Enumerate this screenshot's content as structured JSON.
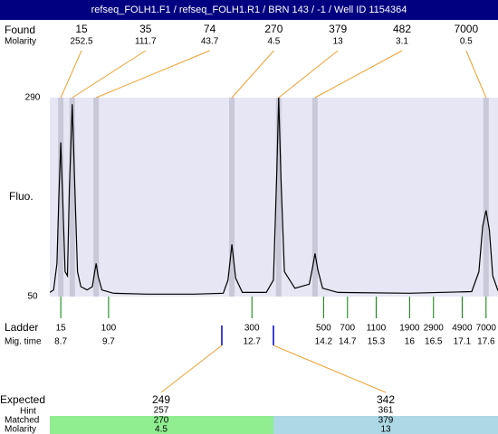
{
  "title": "refseq_FOLH1.F1 / refseq_FOLH1.R1 / BRN 143 / -1 / Well ID 1154364",
  "labels": {
    "found": "Found",
    "found_molarity": "Molarity",
    "fluo": "Fluo.",
    "ladder": "Ladder",
    "mig_time": "Mig. time",
    "expected": "Expected",
    "hint": "Hint",
    "matched": "Matched",
    "matched_molarity": "Molarity"
  },
  "chart_data": {
    "type": "line",
    "color": "#000000",
    "x": [
      8.47,
      8.55,
      8.62,
      8.66,
      8.7,
      8.74,
      8.79,
      8.84,
      8.88,
      8.94,
      8.99,
      9.05,
      9.12,
      9.25,
      9.36,
      9.41,
      9.44,
      9.48,
      9.56,
      9.8,
      10.5,
      11.5,
      12.1,
      12.2,
      12.28,
      12.36,
      12.5,
      13.0,
      13.15,
      13.22,
      13.26,
      13.31,
      13.38,
      13.6,
      13.9,
      13.97,
      14.02,
      14.08,
      14.18,
      14.5,
      16.0,
      17.3,
      17.45,
      17.53,
      17.6,
      17.67,
      17.74,
      17.85
    ],
    "values": [
      55,
      58,
      90,
      170,
      236,
      170,
      80,
      75,
      180,
      282,
      190,
      80,
      62,
      58,
      62,
      80,
      90,
      75,
      58,
      54,
      53,
      53,
      54,
      70,
      113,
      72,
      55,
      55,
      70,
      200,
      290,
      190,
      80,
      60,
      65,
      85,
      102,
      82,
      60,
      55,
      54,
      56,
      80,
      135,
      154,
      130,
      75,
      57
    ],
    "xlim": [
      8.47,
      17.85
    ],
    "ylim": [
      50,
      290
    ],
    "yticks": [
      50,
      290
    ]
  },
  "found": [
    {
      "size": 15,
      "molarity": 252.5,
      "time": 8.7
    },
    {
      "size": 35,
      "molarity": 111.7,
      "time": 8.94
    },
    {
      "size": 74,
      "molarity": 43.7,
      "time": 9.44
    },
    {
      "size": 270,
      "molarity": 4.5,
      "time": 12.28
    },
    {
      "size": 379,
      "molarity": 13,
      "time": 13.26
    },
    {
      "size": 482,
      "molarity": 3.1,
      "time": 14.02
    },
    {
      "size": 7000,
      "molarity": 0.5,
      "time": 17.6
    }
  ],
  "ladder": [
    {
      "size": 15,
      "time": 8.7
    },
    {
      "size": 100,
      "time": 9.7
    },
    {
      "size": 300,
      "time": 12.7
    },
    {
      "size": 500,
      "time": 14.2
    },
    {
      "size": 700,
      "time": 14.7
    },
    {
      "size": 1100,
      "time": 15.3
    },
    {
      "size": 1900,
      "time": 16
    },
    {
      "size": 2900,
      "time": 16.5
    },
    {
      "size": 4900,
      "time": 17.1
    },
    {
      "size": 7000,
      "time": 17.6
    }
  ],
  "expected": [
    {
      "size": 249,
      "time": 12.07,
      "hint": 257,
      "matched": 270,
      "molarity": 4.5
    },
    {
      "size": 342,
      "time": 13.15,
      "hint": 361,
      "matched": 379,
      "molarity": 13
    }
  ]
}
